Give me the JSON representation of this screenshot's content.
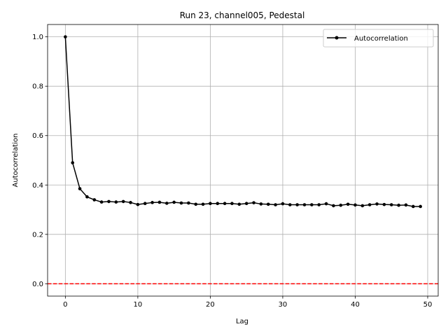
{
  "chart_data": {
    "type": "line",
    "title": "Run 23, channel005, Pedestal",
    "xlabel": "Lag",
    "ylabel": "Autocorrelation",
    "xlim": [
      -2.45,
      51.45
    ],
    "ylim": [
      -0.05,
      1.05
    ],
    "xticks": [
      0,
      10,
      20,
      30,
      40,
      50
    ],
    "yticks": [
      0.0,
      0.2,
      0.4,
      0.6,
      0.8,
      1.0
    ],
    "xtick_labels": [
      "0",
      "10",
      "20",
      "30",
      "40",
      "50"
    ],
    "ytick_labels": [
      "0.0",
      "0.2",
      "0.4",
      "0.6",
      "0.8",
      "1.0"
    ],
    "grid": true,
    "legend_position": "top-right",
    "series": [
      {
        "name": "Autocorrelation",
        "color": "#000000",
        "marker": "circle",
        "x": [
          0,
          1,
          2,
          3,
          4,
          5,
          6,
          7,
          8,
          9,
          10,
          11,
          12,
          13,
          14,
          15,
          16,
          17,
          18,
          19,
          20,
          21,
          22,
          23,
          24,
          25,
          26,
          27,
          28,
          29,
          30,
          31,
          32,
          33,
          34,
          35,
          36,
          37,
          38,
          39,
          40,
          41,
          42,
          43,
          44,
          45,
          46,
          47,
          48,
          49
        ],
        "y": [
          1.0,
          0.49,
          0.385,
          0.352,
          0.34,
          0.331,
          0.333,
          0.331,
          0.333,
          0.329,
          0.321,
          0.325,
          0.329,
          0.33,
          0.326,
          0.33,
          0.327,
          0.327,
          0.322,
          0.322,
          0.325,
          0.325,
          0.325,
          0.325,
          0.322,
          0.325,
          0.328,
          0.323,
          0.322,
          0.32,
          0.324,
          0.32,
          0.32,
          0.32,
          0.32,
          0.32,
          0.324,
          0.316,
          0.318,
          0.322,
          0.319,
          0.316,
          0.32,
          0.323,
          0.321,
          0.32,
          0.318,
          0.319,
          0.313,
          0.313
        ]
      }
    ],
    "reference_lines": [
      {
        "orientation": "horizontal",
        "y": 0.0,
        "color": "#ff0000",
        "style": "dashed"
      }
    ]
  }
}
